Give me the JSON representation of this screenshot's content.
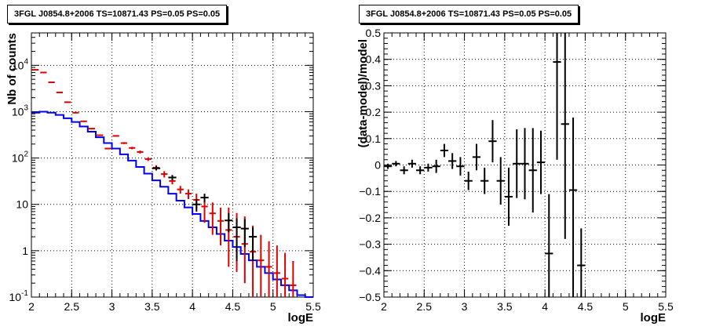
{
  "chart_data": [
    {
      "type": "line",
      "title": "3FGL J0854.8+2006 TS=10871.43 PS=0.05 PS=0.05",
      "xlabel": "logE",
      "ylabel": "Nb of counts",
      "xlim": [
        2,
        5.5
      ],
      "ylim": [
        0.1,
        50000
      ],
      "yscale": "log",
      "grid": true,
      "xticks": [
        "2",
        "2.5",
        "3",
        "3.5",
        "4",
        "4.5",
        "5",
        "5.5"
      ],
      "yticks": [
        {
          "v": 0.1,
          "label": "10^-1",
          "base": "10",
          "exp": "-1"
        },
        {
          "v": 1,
          "label": "1",
          "base": "1",
          "exp": ""
        },
        {
          "v": 10,
          "label": "10",
          "base": "10",
          "exp": ""
        },
        {
          "v": 100,
          "label": "10^2",
          "base": "10",
          "exp": "2"
        },
        {
          "v": 1000,
          "label": "10^3",
          "base": "10",
          "exp": "3"
        },
        {
          "v": 10000,
          "label": "10^4",
          "base": "10",
          "exp": "4"
        }
      ],
      "bin_width": 0.1,
      "series": [
        {
          "color": "#0000ee",
          "style": "step",
          "x": [
            2.0,
            2.1,
            2.2,
            2.3,
            2.4,
            2.5,
            2.6,
            2.7,
            2.8,
            2.9,
            3.0,
            3.1,
            3.2,
            3.3,
            3.4,
            3.5,
            3.6,
            3.7,
            3.8,
            3.9,
            4.0,
            4.1,
            4.2,
            4.3,
            4.4,
            4.5,
            4.6,
            4.7,
            4.8,
            4.9,
            5.0,
            5.1,
            5.2,
            5.3,
            5.4
          ],
          "values": [
            950,
            1000,
            950,
            850,
            720,
            600,
            480,
            370,
            280,
            210,
            160,
            120,
            88,
            64,
            46,
            33,
            24,
            17,
            12,
            8.6,
            6.2,
            4.4,
            3.2,
            2.3,
            1.65,
            1.2,
            0.85,
            0.62,
            0.45,
            0.33,
            0.24,
            0.18,
            0.14,
            0.11,
            0.1
          ]
        },
        {
          "color": "#dd0000",
          "style": "markers",
          "x": [
            2.05,
            2.15,
            2.25,
            2.35,
            2.45,
            2.55,
            2.65,
            2.75,
            2.85,
            2.95,
            3.05,
            3.15,
            3.25,
            3.35,
            3.45,
            3.55,
            3.65,
            3.75,
            3.85,
            3.95,
            4.05,
            4.15,
            4.25,
            4.35,
            4.45,
            4.55,
            4.65,
            4.75,
            4.85,
            4.95,
            5.05,
            5.15,
            5.25
          ],
          "values": [
            8000,
            7000,
            4300,
            2600,
            1600,
            950,
            620,
            430,
            310,
            160,
            300,
            210,
            165,
            135,
            95,
            62,
            45,
            32,
            21,
            17,
            12.5,
            9,
            6.4,
            4.4,
            2.8,
            2.0,
            1.4,
            0.95,
            0.62,
            0.45,
            0.33,
            0.25,
            0.18
          ],
          "y_low": [
            7800,
            6850,
            4200,
            2550,
            1560,
            920,
            600,
            415,
            300,
            155,
            290,
            200,
            155,
            125,
            86,
            54,
            38,
            27,
            17,
            13,
            8,
            4,
            2.2,
            1.3,
            0.45,
            0.35,
            0.2,
            0.1,
            0.1,
            0.1,
            0.1,
            0.1,
            0.1
          ],
          "y_high": [
            8200,
            7150,
            4400,
            2650,
            1640,
            980,
            640,
            445,
            320,
            165,
            310,
            220,
            175,
            145,
            104,
            70,
            52,
            38,
            25,
            21,
            17,
            14,
            11,
            8.5,
            8.5,
            6.5,
            5.5,
            3.5,
            2.2,
            1.6,
            1.3,
            0.9,
            0.6
          ]
        },
        {
          "color": "#000000",
          "style": "errorbar",
          "x": [
            3.55,
            3.75,
            4.05,
            4.15,
            4.45,
            4.55,
            4.65,
            4.75
          ],
          "values": [
            60,
            38,
            10,
            14,
            4.5,
            3.2,
            3.0,
            2.0
          ],
          "y_low": [
            54,
            33,
            7,
            11,
            2.5,
            0.6,
            1.2,
            0.6
          ],
          "y_high": [
            66,
            43,
            13,
            17,
            6.5,
            5.0,
            4.8,
            3.2
          ]
        }
      ]
    },
    {
      "type": "scatter",
      "title": "3FGL J0854.8+2006 TS=10871.43 PS=0.05 PS=0.05",
      "xlabel": "logE",
      "ylabel": "(data-model)/model",
      "xlim": [
        2,
        5.5
      ],
      "ylim": [
        -0.5,
        0.5
      ],
      "grid": true,
      "xticks": [
        "2",
        "2.5",
        "3",
        "3.5",
        "4",
        "4.5",
        "5",
        "5.5"
      ],
      "yticks": [
        "−0.5",
        "−0.4",
        "−0.3",
        "−0.2",
        "−0.1",
        "0",
        "0.1",
        "0.2",
        "0.3",
        "0.4",
        "0.5"
      ],
      "ytick_values": [
        -0.5,
        -0.4,
        -0.3,
        -0.2,
        -0.1,
        0,
        0.1,
        0.2,
        0.3,
        0.4,
        0.5
      ],
      "x": [
        2.05,
        2.15,
        2.25,
        2.35,
        2.45,
        2.55,
        2.65,
        2.75,
        2.85,
        2.95,
        3.05,
        3.15,
        3.25,
        3.35,
        3.45,
        3.55,
        3.65,
        3.75,
        3.85,
        3.95,
        4.05,
        4.15,
        4.25,
        4.35,
        4.45
      ],
      "values": [
        -0.005,
        0.005,
        -0.02,
        0.005,
        -0.02,
        -0.01,
        -0.005,
        0.055,
        0.015,
        -0.005,
        -0.06,
        0.03,
        -0.06,
        0.09,
        -0.06,
        -0.12,
        0.005,
        0.005,
        -0.02,
        0.01,
        -0.335,
        0.39,
        0.155,
        -0.095,
        -0.38
      ],
      "y_low": [
        -0.015,
        -0.005,
        -0.035,
        -0.01,
        -0.035,
        -0.025,
        -0.03,
        0.03,
        -0.015,
        -0.04,
        -0.095,
        -0.02,
        -0.11,
        0.01,
        -0.15,
        -0.23,
        -0.125,
        -0.13,
        -0.18,
        -0.11,
        -0.5,
        0.02,
        -0.28,
        -0.5,
        -0.5
      ],
      "y_high": [
        0.005,
        0.015,
        -0.005,
        0.02,
        -0.005,
        0.005,
        0.02,
        0.08,
        0.045,
        0.03,
        -0.025,
        0.08,
        -0.01,
        0.17,
        0.03,
        -0.01,
        0.135,
        0.14,
        0.14,
        0.13,
        -0.11,
        0.5,
        0.5,
        0.18,
        -0.24
      ]
    }
  ]
}
